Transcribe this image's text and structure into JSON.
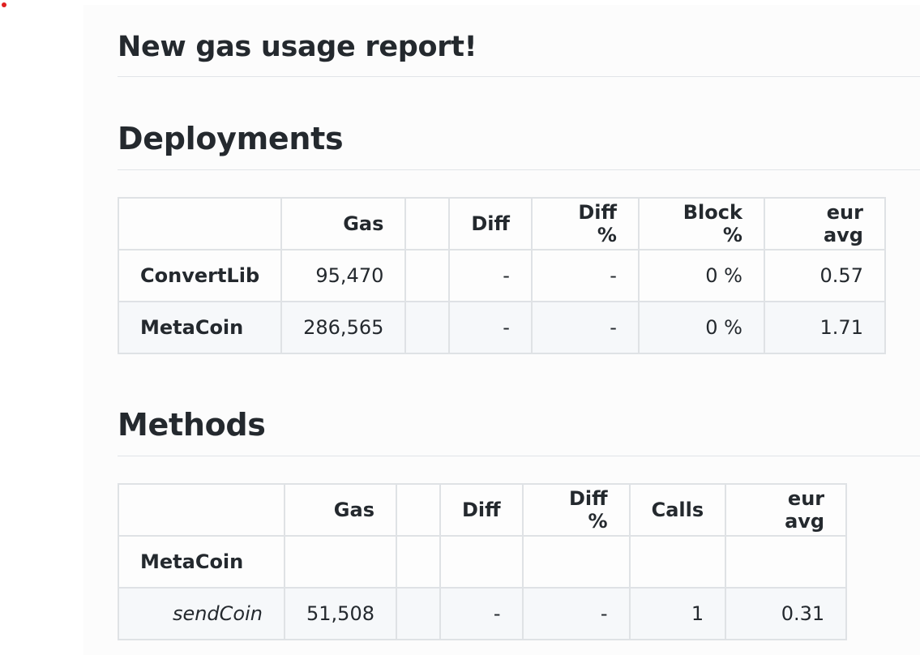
{
  "title": "New gas usage report!",
  "deployments": {
    "heading": "Deployments",
    "headers": [
      "",
      "Gas",
      "",
      "Diff",
      "Diff %",
      "Block %",
      "eur avg"
    ],
    "rows": [
      {
        "name": "ConvertLib",
        "gas": "95,470",
        "blank": "",
        "diff": "-",
        "diff_pct": "-",
        "block_pct": "0 %",
        "eur_avg": "0.57"
      },
      {
        "name": "MetaCoin",
        "gas": "286,565",
        "blank": "",
        "diff": "-",
        "diff_pct": "-",
        "block_pct": "0 %",
        "eur_avg": "1.71"
      }
    ]
  },
  "methods": {
    "heading": "Methods",
    "headers": [
      "",
      "Gas",
      "",
      "Diff",
      "Diff %",
      "Calls",
      "eur avg"
    ],
    "contract": "MetaCoin",
    "rows": [
      {
        "name": "sendCoin",
        "gas": "51,508",
        "blank": "",
        "diff": "-",
        "diff_pct": "-",
        "calls": "1",
        "eur_avg": "0.31"
      }
    ]
  }
}
